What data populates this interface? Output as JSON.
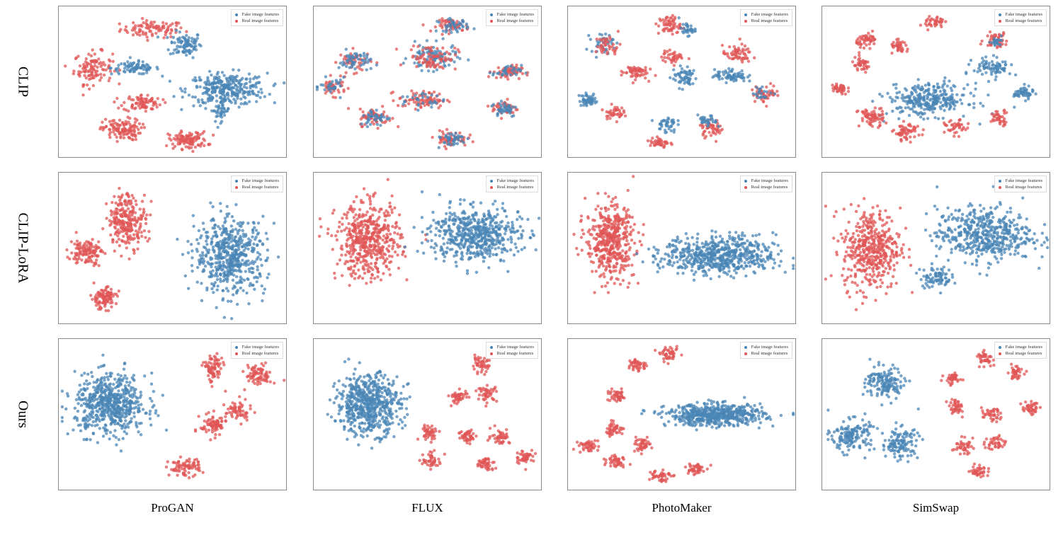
{
  "colors": {
    "fake": "#4a86b5",
    "real": "#e05555"
  },
  "legend": {
    "fake": "Fake image features",
    "real": "Real image features"
  },
  "rows": [
    "CLIP",
    "CLIP-LoRA",
    "Ours"
  ],
  "columns": [
    "ProGAN",
    "FLUX",
    "PhotoMaker",
    "SimSwap"
  ],
  "chart_data": {
    "type": "scatter",
    "note_fields": [
      "class",
      "center_x",
      "center_y",
      "spread_x",
      "spread_y",
      "count"
    ],
    "xlim": [
      -100,
      100
    ],
    "ylim": [
      -100,
      100
    ],
    "grid": false,
    "legend_position": "top-right",
    "panels": [
      {
        "row": "CLIP",
        "column": "ProGAN",
        "clusters": [
          [
            "real",
            -18,
            70,
            20,
            8,
            90
          ],
          [
            "fake",
            11,
            50,
            10,
            12,
            90
          ],
          [
            "real",
            -70,
            19,
            12,
            15,
            110
          ],
          [
            "fake",
            -33,
            19,
            15,
            6,
            80
          ],
          [
            "fake",
            47,
            -9,
            25,
            15,
            300
          ],
          [
            "real",
            -27,
            -27,
            12,
            8,
            80
          ],
          [
            "real",
            -45,
            -62,
            12,
            10,
            120
          ],
          [
            "real",
            13,
            -76,
            12,
            8,
            110
          ],
          [
            "fake",
            41,
            -37,
            6,
            10,
            40
          ]
        ]
      },
      {
        "row": "CLIP",
        "column": "FLUX",
        "clusters": [
          [
            "real",
            22,
            75,
            10,
            6,
            60
          ],
          [
            "fake",
            22,
            75,
            10,
            6,
            40
          ],
          [
            "real",
            -64,
            28,
            10,
            10,
            50
          ],
          [
            "fake",
            -64,
            28,
            10,
            10,
            50
          ],
          [
            "real",
            -83,
            -6,
            8,
            8,
            40
          ],
          [
            "fake",
            -83,
            -6,
            8,
            8,
            30
          ],
          [
            "fake",
            4,
            33,
            15,
            12,
            100
          ],
          [
            "real",
            4,
            33,
            15,
            12,
            80
          ],
          [
            "real",
            69,
            14,
            9,
            6,
            60
          ],
          [
            "fake",
            69,
            14,
            9,
            6,
            30
          ],
          [
            "real",
            -5,
            -23,
            15,
            8,
            80
          ],
          [
            "fake",
            -5,
            -23,
            15,
            8,
            30
          ],
          [
            "real",
            67,
            -34,
            8,
            8,
            40
          ],
          [
            "fake",
            67,
            -34,
            8,
            8,
            40
          ],
          [
            "real",
            -46,
            -46,
            10,
            8,
            60
          ],
          [
            "fake",
            -46,
            -46,
            10,
            8,
            40
          ],
          [
            "real",
            20,
            -74,
            10,
            7,
            60
          ],
          [
            "fake",
            20,
            -74,
            10,
            7,
            40
          ]
        ]
      },
      {
        "row": "CLIP",
        "column": "PhotoMaker",
        "clusters": [
          [
            "fake",
            -70,
            52,
            7,
            9,
            40
          ],
          [
            "real",
            -65,
            48,
            8,
            10,
            40
          ],
          [
            "real",
            -11,
            75,
            7,
            9,
            60
          ],
          [
            "fake",
            4,
            70,
            5,
            6,
            30
          ],
          [
            "real",
            -8,
            33,
            7,
            6,
            40
          ],
          [
            "real",
            -42,
            14,
            8,
            7,
            60
          ],
          [
            "fake",
            2,
            7,
            8,
            10,
            60
          ],
          [
            "real",
            48,
            37,
            9,
            8,
            60
          ],
          [
            "fake",
            42,
            9,
            10,
            6,
            70
          ],
          [
            "real",
            73,
            -14,
            9,
            8,
            50
          ],
          [
            "fake",
            70,
            -14,
            6,
            6,
            20
          ],
          [
            "fake",
            -82,
            -23,
            6,
            6,
            50
          ],
          [
            "real",
            -60,
            -39,
            6,
            6,
            40
          ],
          [
            "fake",
            -14,
            -55,
            6,
            8,
            40
          ],
          [
            "real",
            -20,
            -79,
            6,
            6,
            40
          ],
          [
            "real",
            26,
            -60,
            8,
            8,
            50
          ],
          [
            "fake",
            22,
            -52,
            6,
            6,
            30
          ]
        ]
      },
      {
        "row": "CLIP",
        "column": "SimSwap",
        "clusters": [
          [
            "real",
            -2,
            79,
            6,
            6,
            40
          ],
          [
            "real",
            -60,
            56,
            7,
            6,
            50
          ],
          [
            "real",
            -32,
            46,
            6,
            6,
            40
          ],
          [
            "real",
            -66,
            23,
            6,
            7,
            40
          ],
          [
            "real",
            -85,
            -9,
            5,
            6,
            40
          ],
          [
            "real",
            52,
            56,
            7,
            7,
            50
          ],
          [
            "fake",
            52,
            56,
            6,
            6,
            20
          ],
          [
            "fake",
            -7,
            -23,
            25,
            15,
            300
          ],
          [
            "fake",
            49,
            19,
            12,
            9,
            80
          ],
          [
            "fake",
            76,
            -14,
            6,
            6,
            50
          ],
          [
            "real",
            -57,
            -46,
            8,
            9,
            70
          ],
          [
            "real",
            -26,
            -65,
            8,
            8,
            60
          ],
          [
            "real",
            17,
            -60,
            7,
            7,
            40
          ],
          [
            "real",
            55,
            -46,
            6,
            7,
            40
          ]
        ]
      },
      {
        "row": "CLIP-LoRA",
        "column": "ProGAN",
        "clusters": [
          [
            "real",
            -40,
            38,
            12,
            25,
            250
          ],
          [
            "real",
            -76,
            -4,
            10,
            12,
            120
          ],
          [
            "real",
            -61,
            -65,
            8,
            10,
            100
          ],
          [
            "fake",
            50,
            -9,
            22,
            35,
            550
          ]
        ]
      },
      {
        "row": "CLIP-LoRA",
        "column": "FLUX",
        "clusters": [
          [
            "real",
            -52,
            10,
            20,
            35,
            500
          ],
          [
            "fake",
            41,
            19,
            28,
            25,
            550
          ]
        ]
      },
      {
        "row": "CLIP-LoRA",
        "column": "PhotoMaker",
        "clusters": [
          [
            "real",
            -63,
            10,
            15,
            35,
            450
          ],
          [
            "fake",
            32,
            -9,
            35,
            18,
            600
          ]
        ]
      },
      {
        "row": "CLIP-LoRA",
        "column": "SimSwap",
        "clusters": [
          [
            "real",
            -57,
            0,
            18,
            38,
            450
          ],
          [
            "fake",
            42,
            19,
            30,
            25,
            500
          ],
          [
            "fake",
            -1,
            -37,
            10,
            10,
            80
          ]
        ]
      },
      {
        "row": "Ours",
        "column": "ProGAN",
        "clusters": [
          [
            "fake",
            -55,
            14,
            22,
            28,
            600
          ],
          [
            "real",
            35,
            61,
            6,
            14,
            80
          ],
          [
            "real",
            75,
            52,
            8,
            10,
            80
          ],
          [
            "real",
            35,
            -13,
            8,
            10,
            80
          ],
          [
            "real",
            57,
            5,
            8,
            10,
            60
          ],
          [
            "real",
            10,
            -69,
            10,
            8,
            80
          ]
        ]
      },
      {
        "row": "Ours",
        "column": "FLUX",
        "clusters": [
          [
            "fake",
            -52,
            14,
            20,
            28,
            600
          ],
          [
            "real",
            45,
            66,
            6,
            7,
            45
          ],
          [
            "real",
            27,
            24,
            6,
            7,
            45
          ],
          [
            "real",
            52,
            28,
            6,
            7,
            45
          ],
          [
            "real",
            1,
            -23,
            6,
            7,
            45
          ],
          [
            "real",
            35,
            -28,
            6,
            7,
            45
          ],
          [
            "real",
            63,
            -28,
            6,
            7,
            45
          ],
          [
            "real",
            85,
            -55,
            6,
            7,
            45
          ],
          [
            "real",
            4,
            -60,
            6,
            7,
            45
          ],
          [
            "real",
            50,
            -65,
            6,
            7,
            45
          ]
        ]
      },
      {
        "row": "Ours",
        "column": "PhotoMaker",
        "clusters": [
          [
            "fake",
            29,
            0,
            30,
            10,
            550
          ],
          [
            "real",
            -39,
            66,
            6,
            6,
            45
          ],
          [
            "real",
            -11,
            80,
            6,
            6,
            45
          ],
          [
            "real",
            -57,
            24,
            6,
            6,
            45
          ],
          [
            "real",
            -60,
            -18,
            6,
            6,
            45
          ],
          [
            "real",
            -82,
            -41,
            6,
            6,
            45
          ],
          [
            "real",
            -36,
            -39,
            6,
            6,
            45
          ],
          [
            "real",
            -57,
            -60,
            6,
            6,
            45
          ],
          [
            "real",
            -20,
            -79,
            7,
            6,
            45
          ],
          [
            "real",
            11,
            -71,
            6,
            6,
            45
          ]
        ]
      },
      {
        "row": "Ours",
        "column": "SimSwap",
        "clusters": [
          [
            "fake",
            -45,
            42,
            12,
            15,
            150
          ],
          [
            "fake",
            -75,
            -27,
            12,
            15,
            150
          ],
          [
            "fake",
            -32,
            -37,
            12,
            15,
            120
          ],
          [
            "real",
            42,
            75,
            5,
            6,
            40
          ],
          [
            "real",
            14,
            47,
            5,
            6,
            40
          ],
          [
            "real",
            69,
            56,
            5,
            6,
            40
          ],
          [
            "real",
            17,
            10,
            5,
            8,
            40
          ],
          [
            "real",
            48,
            0,
            6,
            6,
            40
          ],
          [
            "real",
            82,
            10,
            5,
            6,
            40
          ],
          [
            "real",
            23,
            -41,
            6,
            7,
            40
          ],
          [
            "real",
            51,
            -37,
            6,
            7,
            40
          ],
          [
            "real",
            38,
            -74,
            6,
            6,
            40
          ]
        ]
      }
    ]
  }
}
